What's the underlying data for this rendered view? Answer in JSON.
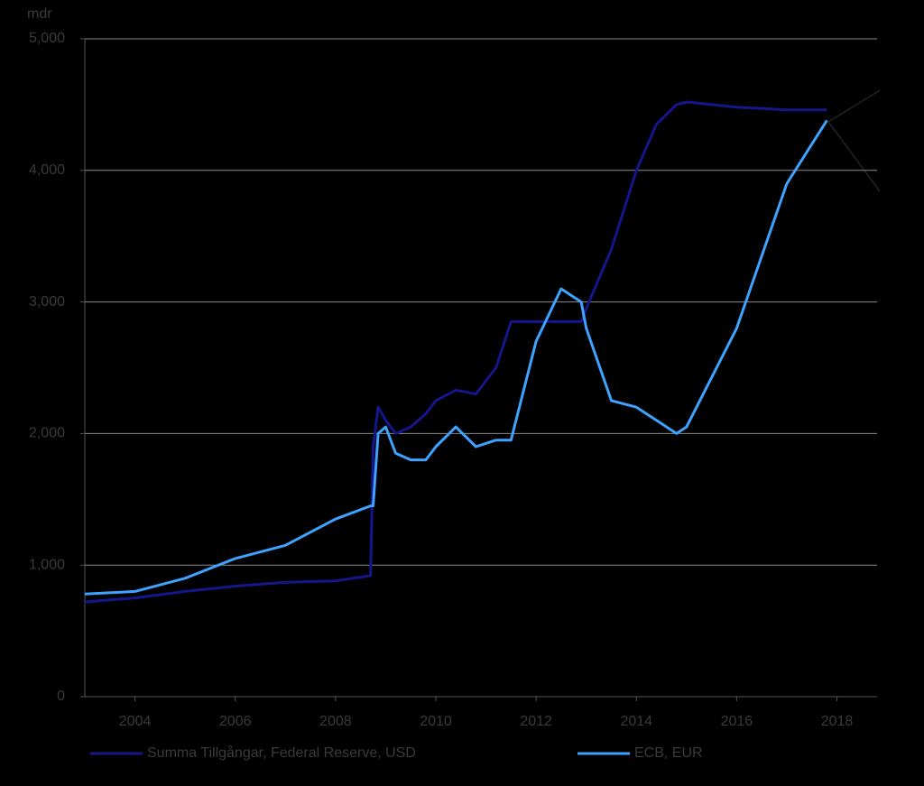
{
  "chart_data": {
    "type": "line",
    "y_label": "mdr",
    "xlim": [
      2003,
      2018.8
    ],
    "xticks": [
      2004,
      2006,
      2008,
      2010,
      2012,
      2014,
      2016,
      2018
    ],
    "ylim": [
      0,
      5000
    ],
    "yticks": [
      0,
      {
        "value": 1000,
        "label": "1,000"
      },
      {
        "value": 2000,
        "label": "2,000"
      },
      {
        "value": 3000,
        "label": "3,000"
      },
      {
        "value": 4000,
        "label": "4,000"
      },
      {
        "value": 5000,
        "label": "5,000"
      }
    ],
    "grid": true,
    "x": [
      2003.0,
      2004.0,
      2005.0,
      2006.0,
      2007.0,
      2008.0,
      2008.7,
      2008.75,
      2008.85,
      2009.0,
      2009.2,
      2009.5,
      2009.8,
      2010.0,
      2010.4,
      2010.8,
      2011.2,
      2011.5,
      2012.0,
      2012.5,
      2012.9,
      2013.0,
      2013.5,
      2014.0,
      2014.4,
      2014.8,
      2015.0,
      2016.0,
      2017.0,
      2017.8
    ],
    "series": [
      {
        "name": "Summa Tillgångar, Federal Reserve, USD",
        "color": "#16168c",
        "values": [
          720,
          750,
          800,
          840,
          870,
          880,
          920,
          1900,
          2200,
          2100,
          2000,
          2050,
          2150,
          2250,
          2330,
          2300,
          2500,
          2850,
          2850,
          2850,
          2850,
          2950,
          3400,
          4000,
          4350,
          4500,
          4520,
          4480,
          4460,
          4460
        ]
      },
      {
        "name": "ECB, EUR",
        "color": "#3ea2ff",
        "values": [
          780,
          800,
          900,
          1050,
          1150,
          1350,
          1450,
          1450,
          2000,
          2050,
          1850,
          1800,
          1800,
          1900,
          2050,
          1900,
          1950,
          1950,
          2700,
          3100,
          3000,
          2800,
          2250,
          2200,
          2100,
          2000,
          2050,
          2800,
          3900,
          4380
        ]
      }
    ]
  }
}
